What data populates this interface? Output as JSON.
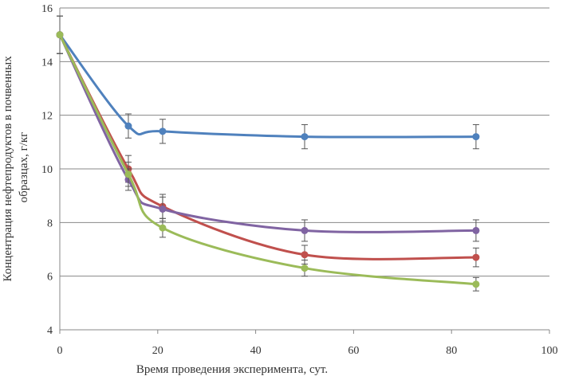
{
  "chart_data": {
    "type": "line",
    "title": "",
    "xlabel": "Время проведения эксперимента, сут.",
    "ylabel_lines": [
      "Концентрация нефтепродуктов в почвенных",
      "образцах, г/кг"
    ],
    "xlim": [
      0,
      100
    ],
    "ylim": [
      4,
      16
    ],
    "xticks": [
      0,
      20,
      40,
      60,
      80,
      100
    ],
    "yticks": [
      4,
      6,
      8,
      10,
      12,
      14,
      16
    ],
    "grid": "horizontal",
    "legend": "none",
    "x": [
      0,
      14,
      21,
      50,
      85
    ],
    "series": [
      {
        "name": "series-blue",
        "color": "#4F81BD",
        "values": [
          15,
          11.6,
          11.4,
          11.2,
          11.2
        ],
        "errors": [
          0.7,
          0.45,
          0.45,
          0.45,
          0.45
        ]
      },
      {
        "name": "series-red",
        "color": "#C0504D",
        "values": [
          15,
          10.0,
          8.6,
          6.8,
          6.7
        ],
        "errors": [
          0.7,
          0.5,
          0.45,
          0.35,
          0.35
        ]
      },
      {
        "name": "series-purple",
        "color": "#8064A2",
        "values": [
          15,
          9.6,
          8.5,
          7.7,
          7.7
        ],
        "errors": [
          0.7,
          0.4,
          0.45,
          0.4,
          0.4
        ]
      },
      {
        "name": "series-green",
        "color": "#9BBB59",
        "values": [
          15,
          9.8,
          7.8,
          6.3,
          5.7
        ],
        "errors": [
          0.7,
          0.45,
          0.35,
          0.3,
          0.25
        ]
      }
    ]
  }
}
